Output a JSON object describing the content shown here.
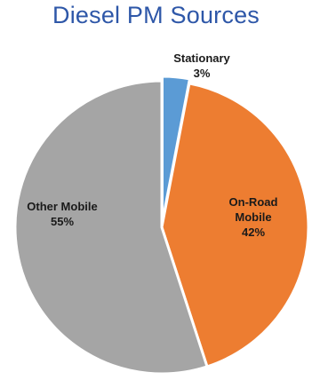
{
  "chart_data": {
    "type": "pie",
    "title": "Diesel PM Sources",
    "slices": [
      {
        "label": "Stationary",
        "value": 3,
        "value_label": "3%",
        "color": "#5b9bd5"
      },
      {
        "label": "On-Road Mobile",
        "label_lines": [
          "On-Road",
          "Mobile"
        ],
        "value": 42,
        "value_label": "42%",
        "color": "#ed7d31"
      },
      {
        "label": "Other Mobile",
        "value": 55,
        "value_label": "55%",
        "color": "#a5a5a5"
      }
    ],
    "legend": "none",
    "slice_border_color": "#ffffff"
  }
}
